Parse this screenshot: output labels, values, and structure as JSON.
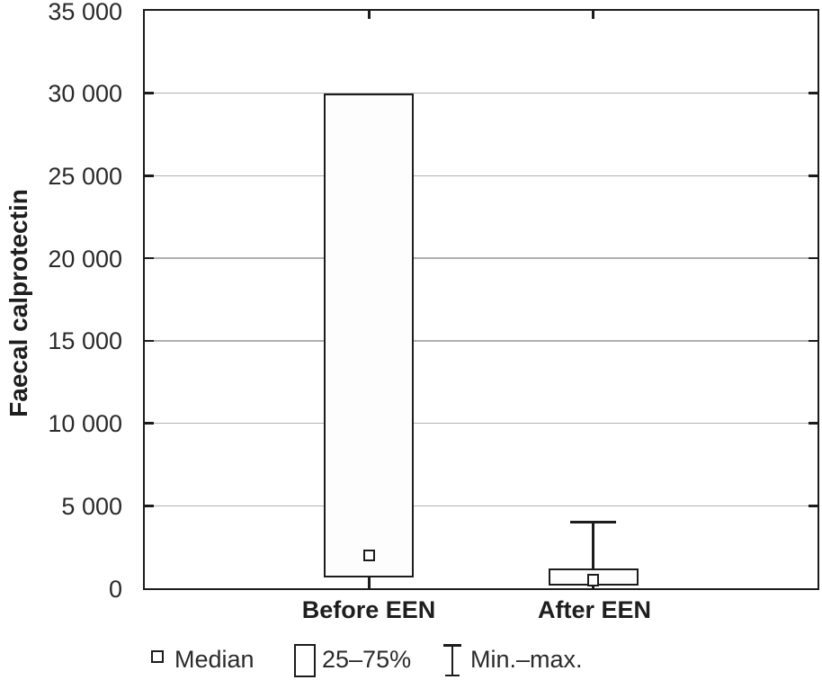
{
  "chart_data": {
    "type": "box",
    "title": "",
    "xlabel": "",
    "ylabel": "Faecal calprotectin",
    "ylim": [
      0,
      35000
    ],
    "grid": "horizontal",
    "yticks": [
      {
        "value": 0,
        "label": "0"
      },
      {
        "value": 5000,
        "label": "5 000"
      },
      {
        "value": 10000,
        "label": "10 000"
      },
      {
        "value": 15000,
        "label": "15 000"
      },
      {
        "value": 20000,
        "label": "20 000"
      },
      {
        "value": 25000,
        "label": "25 000"
      },
      {
        "value": 30000,
        "label": "30 000"
      },
      {
        "value": 35000,
        "label": "35 000"
      }
    ],
    "categories": [
      "Before EEN",
      "After EEN"
    ],
    "boxes": [
      {
        "category": "Before EEN",
        "median": 2000,
        "q1": 650,
        "q3": 30000,
        "whisker_min": null,
        "whisker_max": null
      },
      {
        "category": "After EEN",
        "median": 500,
        "q1": 150,
        "q3": 1200,
        "whisker_min": null,
        "whisker_max": 4000
      }
    ],
    "legend": [
      {
        "icon": "median-square-icon",
        "label": "Median"
      },
      {
        "icon": "box-icon",
        "label": "25–75%"
      },
      {
        "icon": "min-max-whisker-icon",
        "label": "Min.–max."
      }
    ],
    "legend_position": "bottom",
    "colors": {
      "line": "#1c1c1c",
      "box_fill": "#fdfdfd",
      "gridline": "#b0b0b0",
      "text": "#2b2b2b",
      "background": "#ffffff"
    }
  }
}
